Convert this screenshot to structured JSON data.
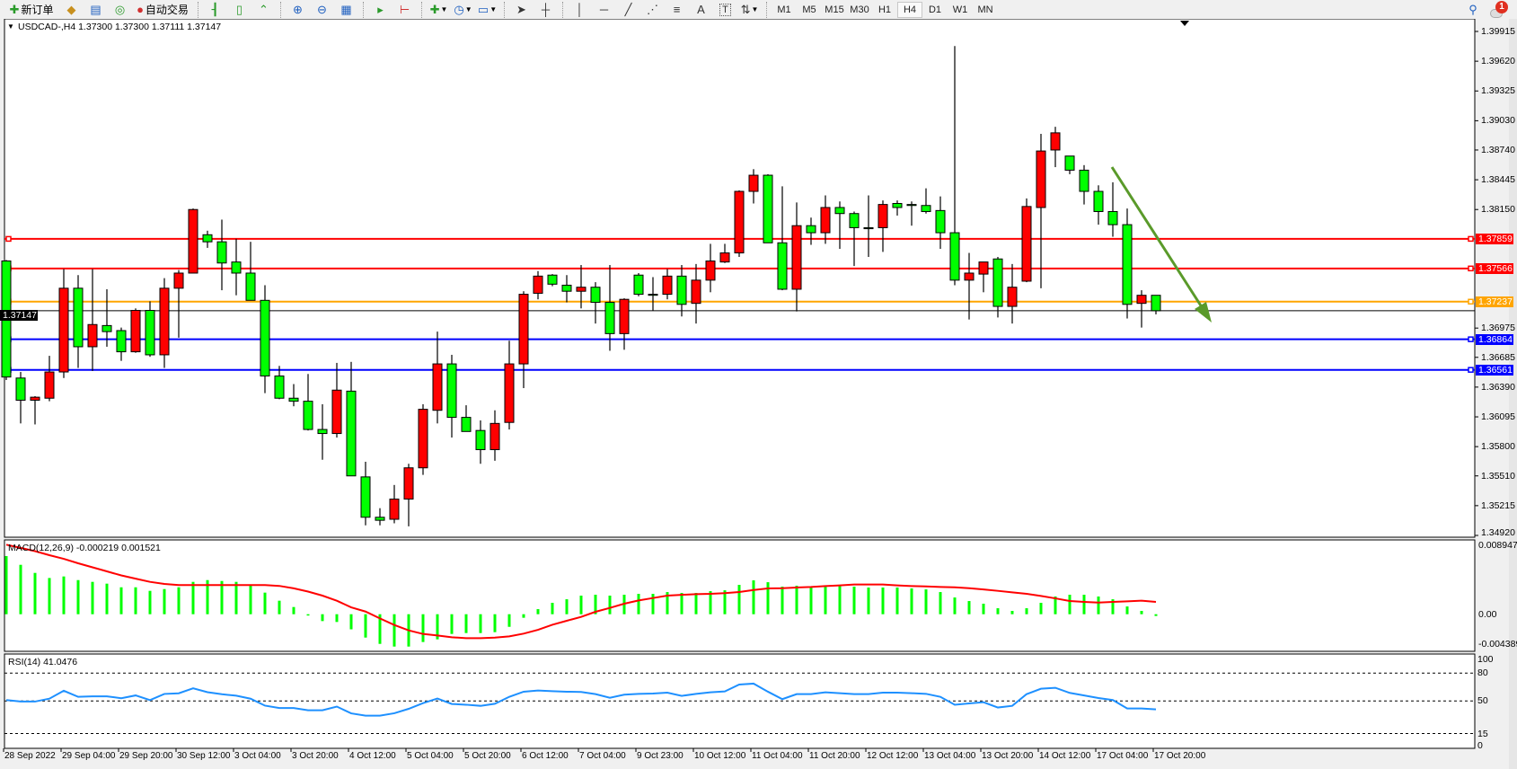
{
  "toolbar": {
    "new_order": "新订单",
    "auto_trading": "自动交易",
    "icons": [
      "new-order-icon",
      "gold-icon",
      "terminal-icon",
      "signals-icon",
      "auto-trading-icon",
      "bar-chart-icon",
      "candlestick-icon",
      "line-chart-icon",
      "zoom-in-icon",
      "zoom-out-icon",
      "tile-windows-icon",
      "auto-scroll-icon",
      "chart-shift-icon",
      "indicators-icon",
      "periods-clock-icon",
      "templates-icon",
      "cursor-icon",
      "crosshair-icon",
      "vertical-line-icon",
      "horizontal-line-icon",
      "trendline-icon",
      "fibonacci-icon",
      "fibo-fan-icon",
      "text-icon",
      "text-label-icon",
      "arrows-icon",
      "search-icon",
      "notifications-icon"
    ],
    "text_tool": "A",
    "label_tool": "T",
    "periods": [
      "M1",
      "M5",
      "M15",
      "M30",
      "H1",
      "H4",
      "D1",
      "W1",
      "MN"
    ],
    "active_period": "H4",
    "notification_count": "1"
  },
  "chart": {
    "title": "USDCAD-,H4  1.37300 1.37300 1.37111 1.37147",
    "symbol": "USDCAD-",
    "timeframe": "H4",
    "bull_color": "#ff0000",
    "bear_color": "#00ff00",
    "price_labels": [
      "1.39915",
      "1.39620",
      "1.39325",
      "1.39030",
      "1.38740",
      "1.38445",
      "1.38150",
      "1.36975",
      "1.36685",
      "1.36390",
      "1.36095",
      "1.35800",
      "1.35510",
      "1.35215",
      "1.34920"
    ],
    "levels": [
      {
        "price": "1.37859",
        "color": "#ff0000"
      },
      {
        "price": "1.37566",
        "color": "#ff0000"
      },
      {
        "price": "1.37237",
        "color": "#ffa500"
      },
      {
        "price": "1.36864",
        "color": "#0000ff"
      },
      {
        "price": "1.36561",
        "color": "#0000ff"
      }
    ],
    "bid": {
      "price": "1.37147",
      "color": "#000000"
    },
    "arrow_color": "#5a9a2a",
    "time_labels": [
      "28 Sep 2022",
      "29 Sep 04:00",
      "29 Sep 20:00",
      "30 Sep 12:00",
      "3 Oct 04:00",
      "3 Oct 20:00",
      "4 Oct 12:00",
      "5 Oct 04:00",
      "5 Oct 20:00",
      "6 Oct 12:00",
      "7 Oct 04:00",
      "9 Oct 23:00",
      "10 Oct 12:00",
      "11 Oct 04:00",
      "11 Oct 20:00",
      "12 Oct 12:00",
      "13 Oct 04:00",
      "13 Oct 20:00",
      "14 Oct 12:00",
      "17 Oct 04:00",
      "17 Oct 20:00"
    ]
  },
  "macd": {
    "label": "MACD(12,26,9) -0.000219 0.001521",
    "axis_labels": [
      "0.008947",
      "0.00",
      "-0.004389"
    ],
    "hist_color": "#00ff00",
    "signal_color": "#ff0000"
  },
  "rsi": {
    "label": "RSI(14) 41.0476",
    "axis_labels": [
      "100",
      "80",
      "50",
      "15",
      "0"
    ],
    "line_color": "#1e90ff"
  },
  "chart_data": {
    "type": "candlestick",
    "ylim": [
      1.3492,
      1.39915
    ],
    "ohlc": [
      [
        1.3764,
        1.3765,
        1.3646,
        1.3649
      ],
      [
        1.3648,
        1.3654,
        1.3603,
        1.3626
      ],
      [
        1.3626,
        1.363,
        1.3602,
        1.3629
      ],
      [
        1.3628,
        1.367,
        1.3625,
        1.3654
      ],
      [
        1.3654,
        1.3756,
        1.3648,
        1.3737
      ],
      [
        1.3737,
        1.375,
        1.3658,
        1.3679
      ],
      [
        1.3679,
        1.3756,
        1.3655,
        1.3701
      ],
      [
        1.37,
        1.3736,
        1.3679,
        1.3694
      ],
      [
        1.3695,
        1.3698,
        1.3665,
        1.3674
      ],
      [
        1.3674,
        1.3717,
        1.3673,
        1.3715
      ],
      [
        1.3715,
        1.3724,
        1.3669,
        1.3671
      ],
      [
        1.3671,
        1.3747,
        1.3658,
        1.3737
      ],
      [
        1.3737,
        1.3755,
        1.3688,
        1.3752
      ],
      [
        1.3752,
        1.3816,
        1.3752,
        1.3815
      ],
      [
        1.379,
        1.3794,
        1.3777,
        1.3783
      ],
      [
        1.3783,
        1.3805,
        1.3735,
        1.3762
      ],
      [
        1.3763,
        1.3786,
        1.373,
        1.3752
      ],
      [
        1.3752,
        1.3783,
        1.3725,
        1.3725
      ],
      [
        1.3725,
        1.374,
        1.3633,
        1.365
      ],
      [
        1.365,
        1.366,
        1.3627,
        1.3628
      ],
      [
        1.3628,
        1.3642,
        1.362,
        1.3625
      ],
      [
        1.3625,
        1.3652,
        1.3596,
        1.3597
      ],
      [
        1.3597,
        1.3622,
        1.3567,
        1.3593
      ],
      [
        1.3593,
        1.3663,
        1.3589,
        1.3636
      ],
      [
        1.3635,
        1.3664,
        1.3551,
        1.3551
      ],
      [
        1.355,
        1.3565,
        1.3502,
        1.351
      ],
      [
        1.351,
        1.3519,
        1.3502,
        1.3507
      ],
      [
        1.3508,
        1.3542,
        1.3504,
        1.3528
      ],
      [
        1.3528,
        1.3563,
        1.3501,
        1.3559
      ],
      [
        1.3559,
        1.3622,
        1.3552,
        1.3617
      ],
      [
        1.3616,
        1.3694,
        1.3603,
        1.3662
      ],
      [
        1.3662,
        1.3671,
        1.3589,
        1.3609
      ],
      [
        1.3609,
        1.3621,
        1.3595,
        1.3595
      ],
      [
        1.3596,
        1.3606,
        1.3563,
        1.3577
      ],
      [
        1.3577,
        1.3616,
        1.3566,
        1.3603
      ],
      [
        1.3604,
        1.3685,
        1.3597,
        1.3662
      ],
      [
        1.3662,
        1.3734,
        1.3638,
        1.3731
      ],
      [
        1.3732,
        1.3754,
        1.3726,
        1.3749
      ],
      [
        1.375,
        1.3751,
        1.3739,
        1.3741
      ],
      [
        1.374,
        1.375,
        1.3723,
        1.3734
      ],
      [
        1.3734,
        1.376,
        1.3717,
        1.3738
      ],
      [
        1.3738,
        1.3743,
        1.3702,
        1.3723
      ],
      [
        1.3723,
        1.376,
        1.3675,
        1.3692
      ],
      [
        1.3692,
        1.3727,
        1.3676,
        1.3726
      ],
      [
        1.375,
        1.3752,
        1.3729,
        1.3731
      ],
      [
        1.3731,
        1.3748,
        1.3715,
        1.373
      ],
      [
        1.3731,
        1.3756,
        1.3726,
        1.3749
      ],
      [
        1.3749,
        1.376,
        1.3709,
        1.3721
      ],
      [
        1.3722,
        1.3761,
        1.3702,
        1.3745
      ],
      [
        1.3745,
        1.3781,
        1.3733,
        1.3764
      ],
      [
        1.3763,
        1.3781,
        1.3762,
        1.3772
      ],
      [
        1.3772,
        1.3834,
        1.3768,
        1.3833
      ],
      [
        1.3833,
        1.3855,
        1.3821,
        1.3849
      ],
      [
        1.3849,
        1.385,
        1.3782,
        1.3782
      ],
      [
        1.3782,
        1.3838,
        1.3735,
        1.3736
      ],
      [
        1.3736,
        1.3822,
        1.3714,
        1.3799
      ],
      [
        1.3799,
        1.3807,
        1.378,
        1.3792
      ],
      [
        1.3792,
        1.3829,
        1.3781,
        1.3817
      ],
      [
        1.3817,
        1.3823,
        1.3776,
        1.3811
      ],
      [
        1.3811,
        1.3813,
        1.3759,
        1.3797
      ],
      [
        1.3797,
        1.3829,
        1.3768,
        1.3796
      ],
      [
        1.3797,
        1.3824,
        1.3773,
        1.382
      ],
      [
        1.3821,
        1.3824,
        1.3809,
        1.3817
      ],
      [
        1.382,
        1.3823,
        1.3799,
        1.3819
      ],
      [
        1.3819,
        1.3836,
        1.3811,
        1.3813
      ],
      [
        1.3814,
        1.3828,
        1.3776,
        1.3792
      ],
      [
        1.3792,
        1.3977,
        1.374,
        1.3745
      ],
      [
        1.3745,
        1.3772,
        1.3706,
        1.3752
      ],
      [
        1.3751,
        1.3763,
        1.3733,
        1.3763
      ],
      [
        1.3766,
        1.3768,
        1.3708,
        1.3719
      ],
      [
        1.3719,
        1.3761,
        1.3702,
        1.3738
      ],
      [
        1.3744,
        1.3826,
        1.3743,
        1.3818
      ],
      [
        1.3817,
        1.389,
        1.3737,
        1.3873
      ],
      [
        1.3874,
        1.3897,
        1.3857,
        1.3891
      ],
      [
        1.3868,
        1.3868,
        1.385,
        1.3854
      ],
      [
        1.3854,
        1.3859,
        1.382,
        1.3833
      ],
      [
        1.3833,
        1.3839,
        1.38,
        1.3813
      ],
      [
        1.3813,
        1.3842,
        1.3788,
        1.38
      ],
      [
        1.38,
        1.3816,
        1.3707,
        1.3721
      ],
      [
        1.3722,
        1.3735,
        1.3698,
        1.373
      ],
      [
        1.373,
        1.373,
        1.37111,
        1.37147
      ]
    ],
    "macd_ylim": [
      -0.004389,
      0.008947
    ],
    "macd_hist": [
      0.00719,
      0.00611,
      0.00511,
      0.00448,
      0.00467,
      0.00422,
      0.004,
      0.00378,
      0.00333,
      0.00333,
      0.00289,
      0.00311,
      0.00333,
      0.004,
      0.00422,
      0.00411,
      0.004,
      0.00356,
      0.00267,
      0.00167,
      0.00089,
      -7e-05,
      -0.00085,
      -0.00096,
      -0.00187,
      -0.00289,
      -0.00367,
      -0.004,
      -0.004,
      -0.00344,
      -0.00311,
      -0.00244,
      -0.00233,
      -0.00233,
      -0.00222,
      -0.00156,
      -0.00044,
      0.00063,
      0.00141,
      0.00185,
      0.0023,
      0.00241,
      0.0023,
      0.00241,
      0.00252,
      0.00252,
      0.00274,
      0.00263,
      0.00263,
      0.00285,
      0.00296,
      0.00363,
      0.00419,
      0.00396,
      0.00341,
      0.00352,
      0.0033,
      0.00341,
      0.00352,
      0.00341,
      0.0033,
      0.0033,
      0.0033,
      0.00319,
      0.00307,
      0.00274,
      0.00207,
      0.00163,
      0.0013,
      0.00074,
      0.00041,
      0.00074,
      0.00141,
      0.00219,
      0.00241,
      0.00241,
      0.00219,
      0.00185,
      0.00096,
      0.00041,
      -0.000219
    ],
    "macd_signal": [
      0.0086,
      0.0082,
      0.0078,
      0.0073,
      0.00685,
      0.0063,
      0.0058,
      0.0053,
      0.0048,
      0.0044,
      0.004,
      0.00374,
      0.0036,
      0.0036,
      0.0036,
      0.0036,
      0.0036,
      0.0036,
      0.0036,
      0.0035,
      0.0032,
      0.0028,
      0.0023,
      0.00167,
      0.00085,
      0.00033,
      -0.00052,
      -0.00133,
      -0.002,
      -0.00244,
      -0.00263,
      -0.00285,
      -0.00296,
      -0.00296,
      -0.00289,
      -0.00274,
      -0.0024,
      -0.00193,
      -0.0013,
      -0.00081,
      -0.00033,
      0.0003,
      0.00078,
      0.0013,
      0.0017,
      0.002,
      0.0023,
      0.0024,
      0.00248,
      0.00252,
      0.0026,
      0.00274,
      0.003,
      0.00319,
      0.00322,
      0.0033,
      0.00337,
      0.00348,
      0.00356,
      0.00367,
      0.00367,
      0.00367,
      0.00356,
      0.00348,
      0.00344,
      0.00337,
      0.00333,
      0.00322,
      0.00307,
      0.00289,
      0.0027,
      0.00252,
      0.00226,
      0.00196,
      0.00163,
      0.00152,
      0.00144,
      0.00152,
      0.00159,
      0.00167,
      0.001521
    ],
    "rsi": [
      51,
      49.4,
      49.4,
      52.5,
      61,
      54.5,
      55,
      55,
      53,
      56,
      51,
      57.6,
      58.3,
      63.7,
      59.5,
      57.3,
      55.7,
      52.5,
      45,
      42.4,
      42.4,
      40,
      40,
      44,
      36.7,
      34.2,
      34.2,
      36.8,
      41.6,
      47.7,
      52.6,
      46.8,
      46,
      44.8,
      47,
      54.5,
      60,
      61.3,
      60.6,
      60,
      59.7,
      57.4,
      53.5,
      56.8,
      57.7,
      58,
      59,
      55.5,
      57.7,
      59.3,
      60.3,
      67.7,
      68.7,
      60,
      52,
      57.4,
      57.4,
      59.4,
      58.4,
      57.4,
      57.4,
      59,
      59,
      58.4,
      57.7,
      54.5,
      46,
      47.4,
      48.7,
      43,
      44.8,
      57.4,
      63.2,
      64.2,
      58.7,
      56,
      53.2,
      51,
      42,
      42,
      41.0476
    ],
    "rsi_levels": [
      80,
      50,
      15
    ],
    "rsi_ylim": [
      0,
      100
    ]
  }
}
